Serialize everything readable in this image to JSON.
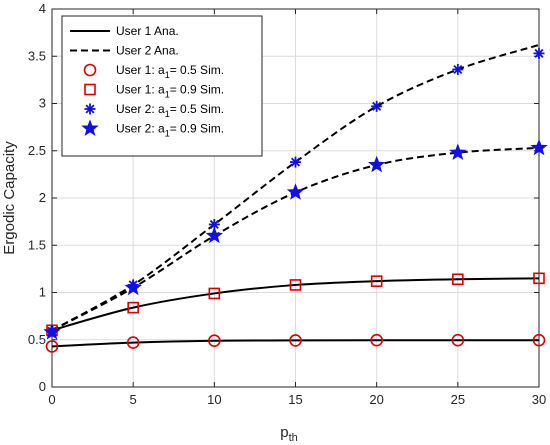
{
  "chart_data": {
    "type": "line",
    "title": "",
    "xlabel": {
      "base": "p",
      "sub": "th"
    },
    "ylabel": "Ergodic Capacity",
    "xlim": [
      0,
      30
    ],
    "ylim": [
      0,
      4
    ],
    "xticks": [
      0,
      5,
      10,
      15,
      20,
      25,
      30
    ],
    "yticks": [
      0,
      0.5,
      1,
      1.5,
      2,
      2.5,
      3,
      3.5,
      4
    ],
    "grid": true,
    "legend_position": "top-left",
    "series": [
      {
        "name": "User 1 Ana.",
        "style": "solid",
        "color": "#000000",
        "lines": [
          {
            "x": [
              0,
              5,
              10,
              15,
              20,
              25,
              30
            ],
            "y": [
              0.43,
              0.47,
              0.49,
              0.493,
              0.495,
              0.495,
              0.495
            ]
          },
          {
            "x": [
              0,
              5,
              10,
              15,
              20,
              25,
              30
            ],
            "y": [
              0.6,
              0.84,
              0.99,
              1.08,
              1.12,
              1.14,
              1.15
            ]
          }
        ]
      },
      {
        "name": "User 2 Ana.",
        "style": "dashed",
        "color": "#000000",
        "lines": [
          {
            "x": [
              0,
              5,
              10,
              15,
              20,
              25,
              30
            ],
            "y": [
              0.6,
              1.08,
              1.72,
              2.38,
              2.97,
              3.36,
              3.62
            ]
          },
          {
            "x": [
              0,
              5,
              10,
              15,
              20,
              25,
              30
            ],
            "y": [
              0.6,
              1.05,
              1.6,
              2.06,
              2.35,
              2.48,
              2.53
            ]
          }
        ]
      }
    ],
    "sim_series": [
      {
        "name": "User 1: a",
        "sub": "1",
        "name_tail": "= 0.5 Sim.",
        "marker": "circle",
        "color": "#e00000",
        "x": [
          0,
          5,
          10,
          15,
          20,
          25,
          30
        ],
        "y": [
          0.43,
          0.47,
          0.49,
          0.493,
          0.495,
          0.495,
          0.495
        ]
      },
      {
        "name": "User 1: a",
        "sub": "1",
        "name_tail": "= 0.9 Sim.",
        "marker": "square",
        "color": "#e00000",
        "x": [
          0,
          5,
          10,
          15,
          20,
          25,
          30
        ],
        "y": [
          0.6,
          0.84,
          0.99,
          1.08,
          1.12,
          1.14,
          1.15
        ]
      },
      {
        "name": "User 2: a",
        "sub": "1",
        "name_tail": "= 0.5 Sim.",
        "marker": "asterisk",
        "color": "#1010e6",
        "x": [
          0,
          5,
          10,
          15,
          20,
          25,
          30
        ],
        "y": [
          0.59,
          1.08,
          1.72,
          2.38,
          2.97,
          3.36,
          3.53
        ]
      },
      {
        "name": "User 2: a",
        "sub": "1",
        "name_tail": "= 0.9 Sim.",
        "marker": "star",
        "color": "#1010e6",
        "x": [
          0,
          5,
          10,
          15,
          20,
          25,
          30
        ],
        "y": [
          0.58,
          1.05,
          1.6,
          2.06,
          2.35,
          2.48,
          2.53
        ]
      }
    ]
  }
}
